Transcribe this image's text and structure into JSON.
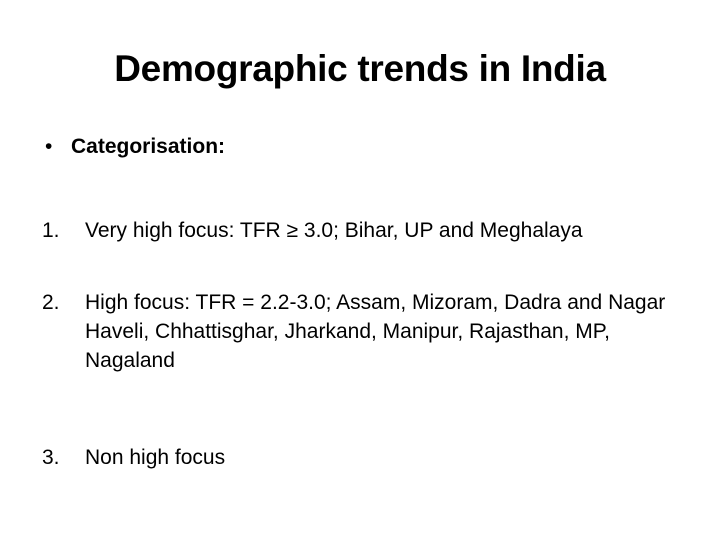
{
  "slide": {
    "title": "Demographic trends in India",
    "bullet": {
      "marker": "•",
      "text": "Categorisation:"
    },
    "items": [
      {
        "number": "1.",
        "text": "Very high focus: TFR ≥ 3.0; Bihar, UP and Meghalaya"
      },
      {
        "number": "2.",
        "text": "High focus: TFR = 2.2-3.0; Assam, Mizoram, Dadra and Nagar Haveli, Chhattisghar, Jharkand, Manipur, Rajasthan, MP, Nagaland"
      },
      {
        "number": "3.",
        "text": "Non high focus"
      }
    ]
  }
}
